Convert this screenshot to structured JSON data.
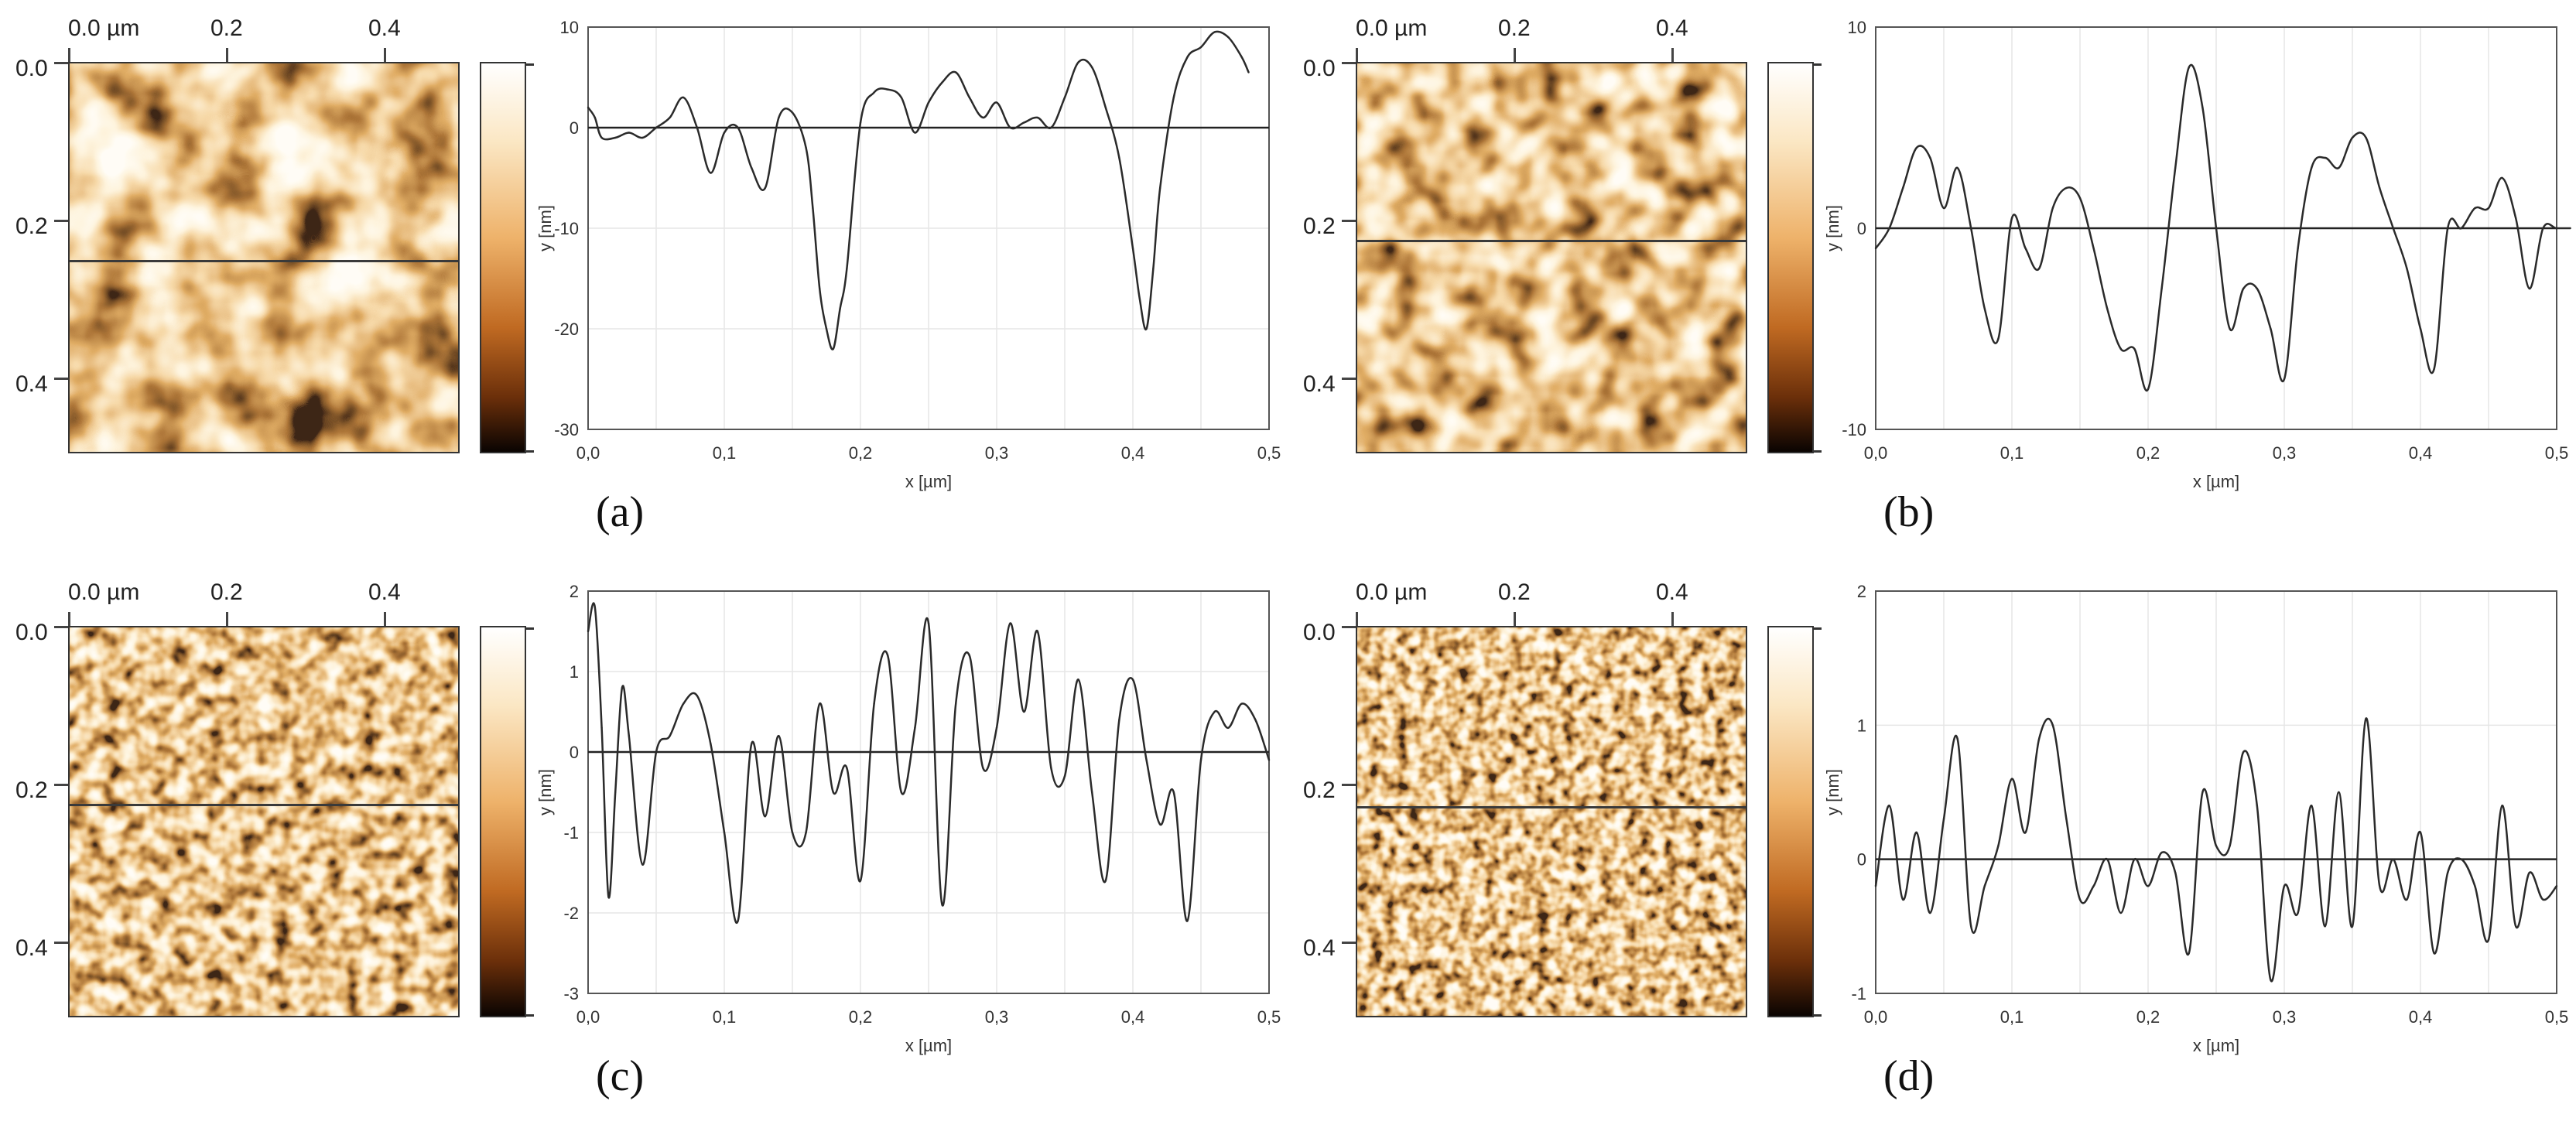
{
  "afm_axes": {
    "top_labels": [
      "0.0 µm",
      "0.2",
      "0.4"
    ],
    "left_labels": [
      "0.0",
      "0.2",
      "0.4"
    ]
  },
  "labels": {
    "x_axis": "x [µm]",
    "y_axis": "y [nm]"
  },
  "panels": [
    {
      "id": "a",
      "label": "(a)",
      "texture": "coarse",
      "scanline_frac": 0.505
    },
    {
      "id": "b",
      "label": "(b)",
      "texture": "medium",
      "scanline_frac": 0.455
    },
    {
      "id": "c",
      "label": "(c)",
      "texture": "fine",
      "scanline_frac": 0.455
    },
    {
      "id": "d",
      "label": "(d)",
      "texture": "finest",
      "scanline_frac": 0.46
    }
  ],
  "chart_data": [
    {
      "type": "line",
      "panel": "a",
      "xlabel": "x [µm]",
      "ylabel": "y [nm]",
      "xlim": [
        0,
        0.5
      ],
      "ylim": [
        -30,
        10
      ],
      "xticks": [
        "0,0",
        "0,1",
        "0,2",
        "0,3",
        "0,4",
        "0,5"
      ],
      "yticks": [
        "10",
        "0",
        "-10",
        "-20",
        "-30"
      ],
      "ytick_values": [
        10,
        0,
        -10,
        -20,
        -30
      ],
      "x": [
        0.0,
        0.005,
        0.01,
        0.02,
        0.03,
        0.04,
        0.05,
        0.06,
        0.07,
        0.08,
        0.09,
        0.1,
        0.11,
        0.12,
        0.13,
        0.14,
        0.15,
        0.16,
        0.165,
        0.17,
        0.175,
        0.18,
        0.185,
        0.19,
        0.2,
        0.21,
        0.22,
        0.23,
        0.24,
        0.25,
        0.26,
        0.27,
        0.28,
        0.29,
        0.3,
        0.31,
        0.32,
        0.33,
        0.34,
        0.35,
        0.36,
        0.37,
        0.38,
        0.39,
        0.4,
        0.405,
        0.41,
        0.415,
        0.42,
        0.43,
        0.44,
        0.45,
        0.46,
        0.47,
        0.48,
        0.485
      ],
      "y": [
        2,
        1,
        -1,
        -1,
        -0.5,
        -1,
        0,
        1,
        3,
        0,
        -4.5,
        -0.5,
        0,
        -4,
        -6,
        1,
        1.5,
        -2,
        -8,
        -16,
        -20,
        -22,
        -18,
        -14,
        0.5,
        3.5,
        3.8,
        3,
        -0.5,
        2.5,
        4.5,
        5.5,
        3,
        1,
        2.5,
        0,
        0.5,
        1,
        0,
        3,
        6.5,
        6,
        2,
        -3,
        -12,
        -17,
        -20,
        -14,
        -6,
        3,
        7,
        8,
        9.5,
        9,
        7,
        5.5
      ]
    },
    {
      "type": "line",
      "panel": "b",
      "xlabel": "x [µm]",
      "ylabel": "y [nm]",
      "xlim": [
        0,
        0.5
      ],
      "ylim": [
        -10,
        10
      ],
      "xticks": [
        "0,0",
        "0,1",
        "0,2",
        "0,3",
        "0,4",
        "0,5"
      ],
      "yticks": [
        "10",
        "0",
        "-10"
      ],
      "ytick_values": [
        10,
        0,
        -10
      ],
      "x": [
        0.0,
        0.01,
        0.02,
        0.03,
        0.04,
        0.05,
        0.06,
        0.07,
        0.08,
        0.09,
        0.1,
        0.11,
        0.12,
        0.13,
        0.14,
        0.15,
        0.16,
        0.17,
        0.18,
        0.19,
        0.2,
        0.21,
        0.22,
        0.23,
        0.24,
        0.25,
        0.26,
        0.27,
        0.28,
        0.29,
        0.3,
        0.31,
        0.32,
        0.33,
        0.34,
        0.35,
        0.36,
        0.37,
        0.38,
        0.39,
        0.4,
        0.41,
        0.42,
        0.43,
        0.44,
        0.45,
        0.46,
        0.47,
        0.48,
        0.49,
        0.5,
        0.51
      ],
      "y": [
        -1,
        0,
        2,
        4,
        3.5,
        1,
        3,
        0,
        -4,
        -5.5,
        0.5,
        -1,
        -2,
        1,
        2,
        1.5,
        -1,
        -4,
        -6,
        -6,
        -8,
        -3,
        3,
        8,
        6,
        0,
        -5,
        -3,
        -3,
        -5,
        -7.5,
        -1,
        3,
        3.5,
        3,
        4.5,
        4.5,
        2,
        0,
        -2,
        -5,
        -7,
        0,
        0,
        1,
        1,
        2.5,
        0.5,
        -3,
        0,
        0,
        0
      ]
    },
    {
      "type": "line",
      "panel": "c",
      "xlabel": "x [µm]",
      "ylabel": "y [nm]",
      "xlim": [
        0,
        0.5
      ],
      "ylim": [
        -3,
        2
      ],
      "xticks": [
        "0,0",
        "0,1",
        "0,2",
        "0,3",
        "0,4",
        "0,5"
      ],
      "yticks": [
        "2",
        "1",
        "0",
        "-1",
        "-2",
        "-3"
      ],
      "ytick_values": [
        2,
        1,
        0,
        -1,
        -2,
        -3
      ],
      "x": [
        0.0,
        0.005,
        0.01,
        0.015,
        0.02,
        0.025,
        0.03,
        0.04,
        0.05,
        0.06,
        0.07,
        0.08,
        0.09,
        0.1,
        0.11,
        0.12,
        0.13,
        0.14,
        0.15,
        0.16,
        0.17,
        0.18,
        0.19,
        0.2,
        0.21,
        0.22,
        0.23,
        0.24,
        0.25,
        0.26,
        0.27,
        0.28,
        0.29,
        0.3,
        0.31,
        0.32,
        0.33,
        0.34,
        0.35,
        0.36,
        0.37,
        0.38,
        0.39,
        0.4,
        0.41,
        0.42,
        0.43,
        0.44,
        0.45,
        0.46,
        0.47,
        0.48,
        0.49,
        0.5
      ],
      "y": [
        1.5,
        1.8,
        0.3,
        -1.8,
        -0.5,
        0.8,
        0.2,
        -1.4,
        0,
        0.2,
        0.6,
        0.7,
        0.1,
        -1,
        -2.1,
        0.1,
        -0.8,
        0.2,
        -1,
        -1,
        0.6,
        -0.5,
        -0.2,
        -1.6,
        0.6,
        1.2,
        -0.5,
        0.3,
        1.6,
        -1.9,
        0.6,
        1.2,
        -0.2,
        0.3,
        1.6,
        0.5,
        1.5,
        -0.2,
        -0.3,
        0.9,
        -0.5,
        -1.6,
        0.4,
        0.9,
        -0.1,
        -0.9,
        -0.5,
        -2.1,
        -0.1,
        0.5,
        0.3,
        0.6,
        0.4,
        -0.1
      ]
    },
    {
      "type": "line",
      "panel": "d",
      "xlabel": "x [µm]",
      "ylabel": "y [nm]",
      "xlim": [
        0,
        0.5
      ],
      "ylim": [
        -1,
        2
      ],
      "xticks": [
        "0,0",
        "0,1",
        "0,2",
        "0,3",
        "0,4",
        "0,5"
      ],
      "yticks": [
        "2",
        "1",
        "0",
        "-1"
      ],
      "ytick_values": [
        2,
        1,
        0,
        -1
      ],
      "x": [
        0.0,
        0.01,
        0.02,
        0.03,
        0.04,
        0.05,
        0.06,
        0.07,
        0.08,
        0.09,
        0.1,
        0.11,
        0.12,
        0.13,
        0.14,
        0.15,
        0.16,
        0.17,
        0.18,
        0.19,
        0.2,
        0.21,
        0.22,
        0.23,
        0.24,
        0.25,
        0.26,
        0.27,
        0.28,
        0.29,
        0.3,
        0.31,
        0.32,
        0.33,
        0.34,
        0.35,
        0.36,
        0.37,
        0.38,
        0.39,
        0.4,
        0.41,
        0.42,
        0.43,
        0.44,
        0.45,
        0.46,
        0.47,
        0.48,
        0.49,
        0.5
      ],
      "y": [
        -0.2,
        0.4,
        -0.3,
        0.2,
        -0.4,
        0.3,
        0.9,
        -0.5,
        -0.2,
        0.1,
        0.6,
        0.2,
        0.9,
        1,
        0.3,
        -0.3,
        -0.2,
        0,
        -0.4,
        0,
        -0.2,
        0.05,
        -0.1,
        -0.7,
        0.5,
        0.1,
        0.1,
        0.8,
        0.4,
        -0.9,
        -0.2,
        -0.4,
        0.4,
        -0.5,
        0.5,
        -0.5,
        1.05,
        -0.2,
        0,
        -0.3,
        0.2,
        -0.7,
        -0.1,
        0,
        -0.2,
        -0.6,
        0.4,
        -0.5,
        -0.1,
        -0.3,
        -0.2
      ]
    }
  ]
}
